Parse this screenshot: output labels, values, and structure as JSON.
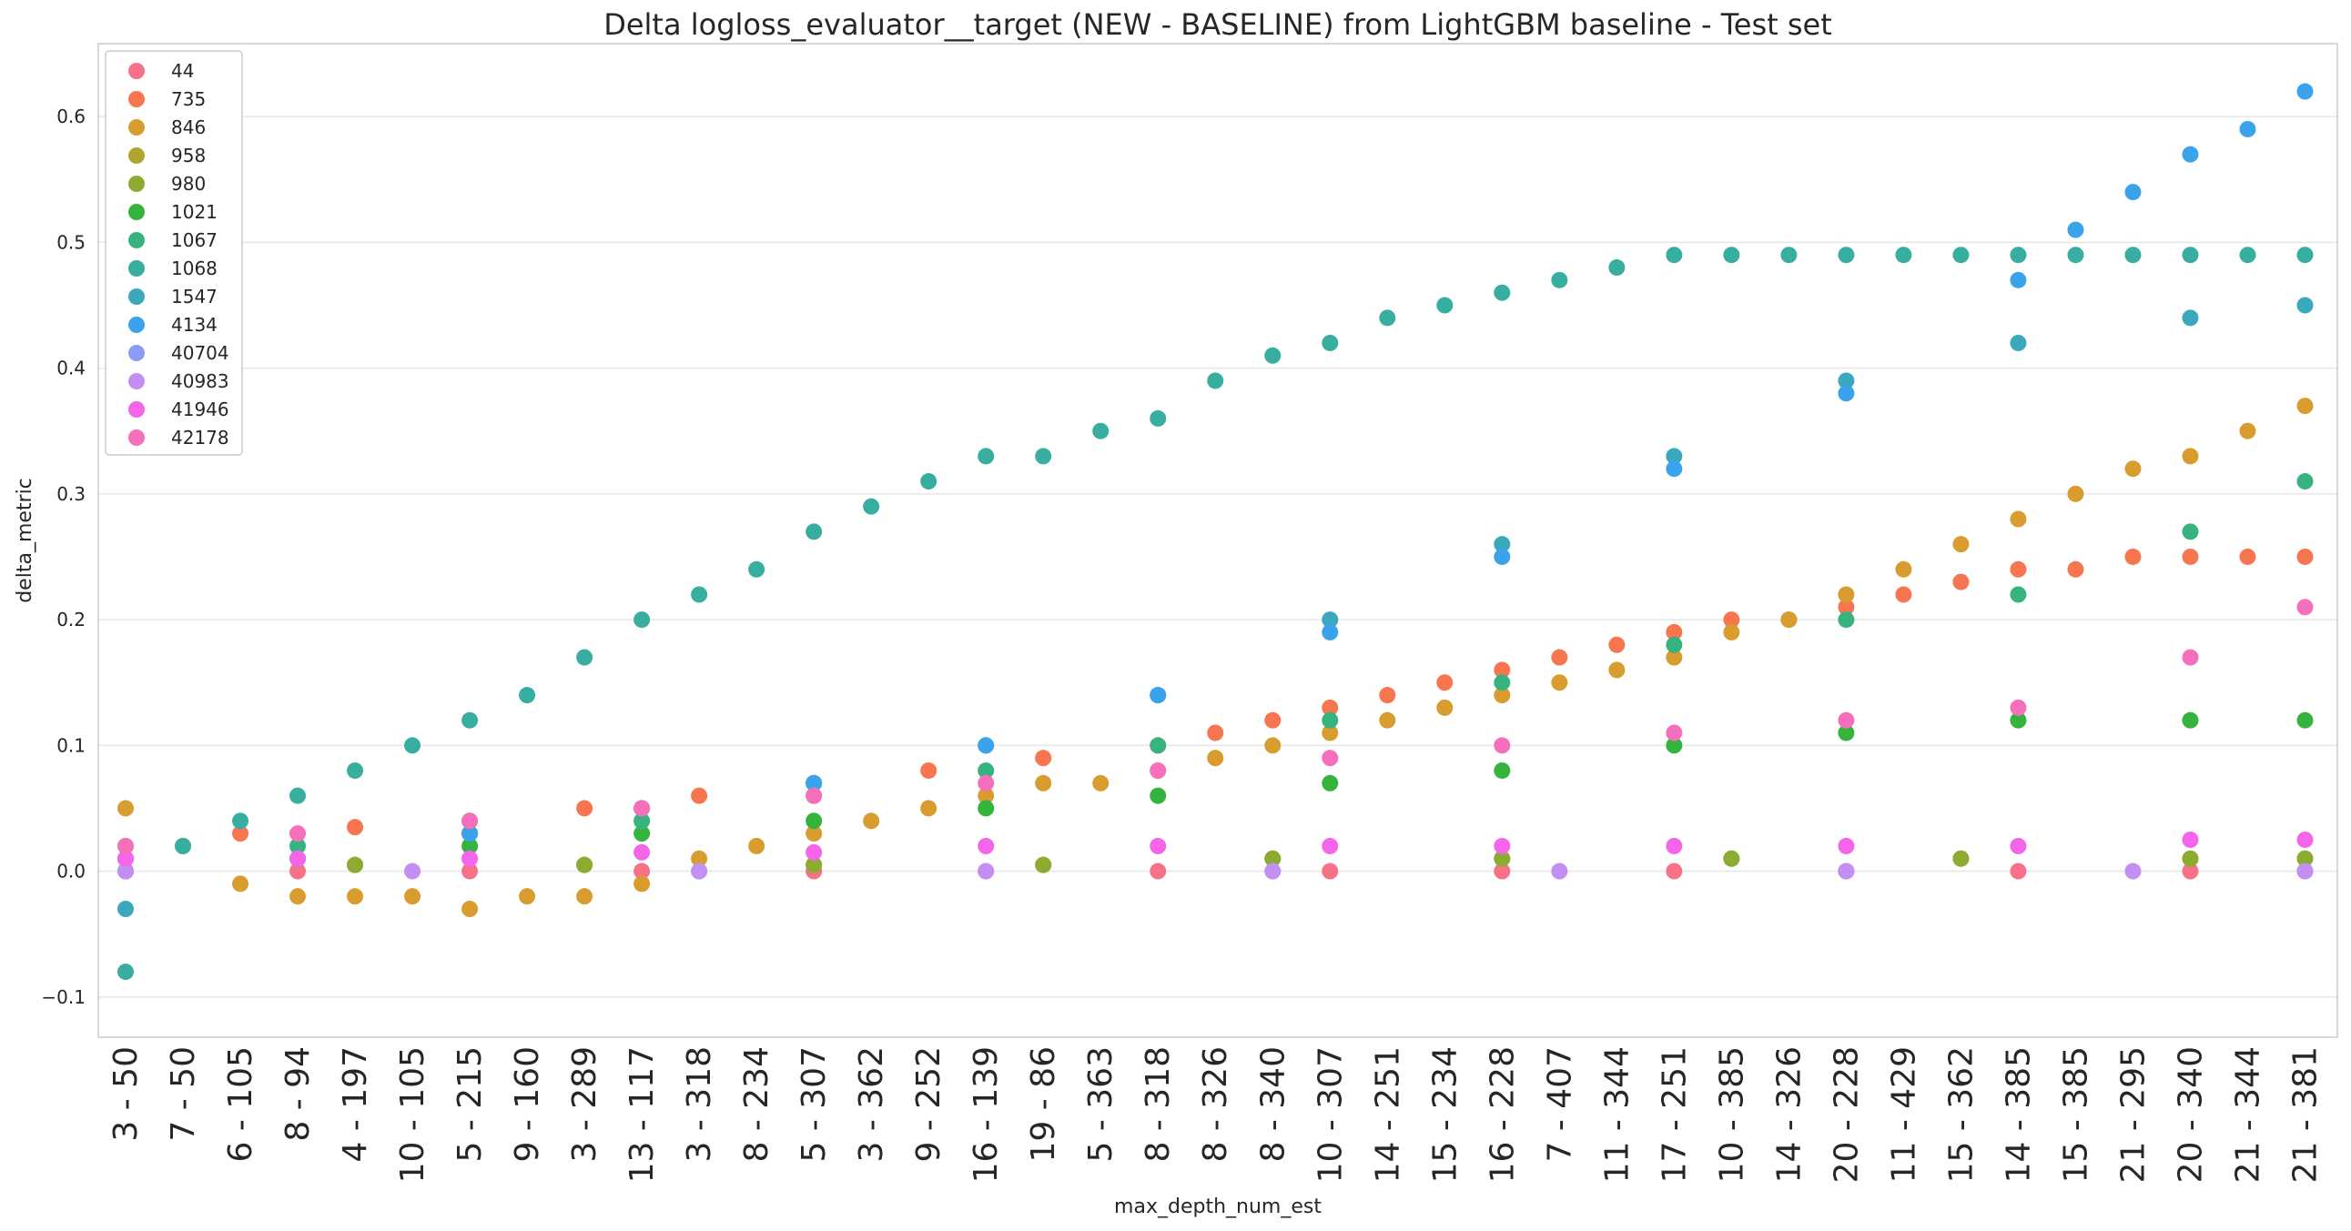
{
  "chart_data": {
    "type": "scatter",
    "title": "Delta logloss_evaluator__target (NEW - BASELINE) from LightGBM baseline - Test set",
    "xlabel": "max_depth_num_est",
    "ylabel": "delta_metric",
    "ylim": [
      -0.132,
      0.658
    ],
    "yticks": [
      "−0.1",
      "0.0",
      "0.1",
      "0.2",
      "0.3",
      "0.4",
      "0.5",
      "0.6"
    ],
    "ytick_values": [
      -0.1,
      0.0,
      0.1,
      0.2,
      0.3,
      0.4,
      0.5,
      0.6
    ],
    "x_tick_labels": [
      "3 - 50",
      "7 - 50",
      "6 - 105",
      "8 - 94",
      "4 - 197",
      "10 - 105",
      "5 - 215",
      "9 - 160",
      "3 - 289",
      "13 - 117",
      "3 - 318",
      "8 - 234",
      "5 - 307",
      "3 - 362",
      "9 - 252",
      "16 - 139",
      "19 - 86",
      "5 - 363",
      "8 - 318",
      "8 - 326",
      "8 - 340",
      "10 - 307",
      "14 - 251",
      "15 - 234",
      "16 - 228",
      "7 - 407",
      "11 - 344",
      "17 - 251",
      "10 - 385",
      "14 - 326",
      "20 - 228",
      "11 - 429",
      "15 - 362",
      "14 - 385",
      "15 - 385",
      "21 - 295",
      "20 - 340",
      "21 - 344",
      "21 - 381"
    ],
    "grid": "horizontal",
    "legend_position": "top-left",
    "series": [
      {
        "name": "44",
        "color": "#f77189",
        "x": [
          0,
          3,
          6,
          9,
          12,
          15,
          18,
          21,
          24,
          27,
          30,
          33,
          36,
          38
        ],
        "y": [
          0,
          0,
          0,
          0,
          0,
          0,
          0,
          0,
          0,
          0,
          0,
          0,
          0,
          0
        ]
      },
      {
        "name": "735",
        "color": "#f7754f",
        "x": [
          0,
          2,
          4,
          6,
          8,
          10,
          12,
          14,
          16,
          18,
          19,
          20,
          21,
          22,
          23,
          24,
          25,
          26,
          27,
          28,
          29,
          30,
          31,
          32,
          33,
          34,
          35,
          36,
          37,
          38
        ],
        "y": [
          0.02,
          0.03,
          0.035,
          0.04,
          0.05,
          0.06,
          0.07,
          0.08,
          0.09,
          0.1,
          0.11,
          0.12,
          0.13,
          0.14,
          0.15,
          0.16,
          0.17,
          0.18,
          0.19,
          0.2,
          0.2,
          0.21,
          0.22,
          0.23,
          0.24,
          0.24,
          0.25,
          0.25,
          0.25,
          0.25
        ]
      },
      {
        "name": "846",
        "color": "#d89c2f",
        "x": [
          0,
          1,
          2,
          3,
          4,
          5,
          6,
          7,
          8,
          9,
          10,
          11,
          12,
          13,
          14,
          15,
          16,
          17,
          18,
          19,
          20,
          21,
          22,
          23,
          24,
          25,
          26,
          27,
          28,
          29,
          30,
          31,
          32,
          33,
          34,
          35,
          36,
          37,
          38
        ],
        "y": [
          0.05,
          0.02,
          -0.01,
          -0.02,
          -0.02,
          -0.02,
          -0.03,
          -0.02,
          -0.02,
          -0.01,
          0.01,
          0.02,
          0.03,
          0.04,
          0.05,
          0.06,
          0.07,
          0.07,
          0.08,
          0.09,
          0.1,
          0.11,
          0.12,
          0.13,
          0.14,
          0.15,
          0.16,
          0.17,
          0.19,
          0.2,
          0.22,
          0.24,
          0.26,
          0.28,
          0.3,
          0.32,
          0.33,
          0.35,
          0.37
        ]
      },
      {
        "name": "958",
        "color": "#b0a52f",
        "x": [
          0,
          4,
          8,
          12,
          16,
          20,
          24,
          28,
          32,
          36,
          38
        ],
        "y": [
          0,
          0.005,
          0.005,
          0.005,
          0.005,
          0.01,
          0.01,
          0.01,
          0.01,
          0.01,
          0.01
        ]
      },
      {
        "name": "980",
        "color": "#8cac31",
        "x": [
          0,
          4,
          8,
          12,
          16,
          20,
          24,
          28,
          32,
          36,
          38
        ],
        "y": [
          0,
          0.005,
          0.005,
          0.005,
          0.005,
          0.01,
          0.01,
          0.01,
          0.01,
          0.01,
          0.01
        ]
      },
      {
        "name": "1021",
        "color": "#34b33d",
        "x": [
          0,
          3,
          6,
          9,
          12,
          15,
          18,
          21,
          24,
          27,
          30,
          33,
          36,
          38
        ],
        "y": [
          0.01,
          0.01,
          0.02,
          0.03,
          0.04,
          0.05,
          0.06,
          0.07,
          0.08,
          0.1,
          0.11,
          0.12,
          0.12,
          0.12
        ]
      },
      {
        "name": "1067",
        "color": "#37b380",
        "x": [
          0,
          3,
          6,
          9,
          12,
          15,
          18,
          21,
          24,
          27,
          30,
          33,
          36,
          38
        ],
        "y": [
          0.01,
          0.02,
          0.03,
          0.04,
          0.06,
          0.08,
          0.1,
          0.12,
          0.15,
          0.18,
          0.2,
          0.22,
          0.27,
          0.31
        ]
      },
      {
        "name": "1068",
        "color": "#38aea1",
        "x": [
          0,
          1,
          2,
          3,
          4,
          5,
          6,
          7,
          8,
          9,
          10,
          11,
          12,
          13,
          14,
          15,
          16,
          17,
          18,
          19,
          20,
          21,
          22,
          23,
          24,
          25,
          26,
          27,
          28,
          29,
          30,
          31,
          32,
          33,
          34,
          35,
          36,
          37,
          38
        ],
        "y": [
          -0.08,
          0.02,
          0.04,
          0.06,
          0.08,
          0.1,
          0.12,
          0.14,
          0.17,
          0.2,
          0.22,
          0.24,
          0.27,
          0.29,
          0.31,
          0.33,
          0.33,
          0.35,
          0.36,
          0.39,
          0.41,
          0.42,
          0.44,
          0.45,
          0.46,
          0.47,
          0.48,
          0.49,
          0.49,
          0.49,
          0.49,
          0.49,
          0.49,
          0.49,
          0.49,
          0.49,
          0.49,
          0.49,
          0.49
        ]
      },
      {
        "name": "1547",
        "color": "#3aa9bd",
        "x": [
          0,
          3,
          6,
          9,
          12,
          15,
          18,
          21,
          24,
          27,
          30,
          33,
          36,
          38
        ],
        "y": [
          -0.03,
          0.01,
          0.03,
          0.05,
          0.07,
          0.1,
          0.14,
          0.2,
          0.26,
          0.33,
          0.39,
          0.42,
          0.44,
          0.45
        ]
      },
      {
        "name": "4134",
        "color": "#3ba3ec",
        "x": [
          0,
          3,
          6,
          9,
          12,
          15,
          18,
          21,
          24,
          27,
          30,
          33,
          34,
          35,
          36,
          37,
          38
        ],
        "y": [
          0,
          0.01,
          0.03,
          0.05,
          0.07,
          0.1,
          0.14,
          0.19,
          0.25,
          0.32,
          0.38,
          0.47,
          0.51,
          0.54,
          0.57,
          0.59,
          0.62
        ]
      },
      {
        "name": "40704",
        "color": "#8c9cf4",
        "x": [
          0,
          10,
          20,
          30,
          38
        ],
        "y": [
          0,
          0,
          0,
          0,
          0
        ]
      },
      {
        "name": "40983",
        "color": "#c38ff3",
        "x": [
          0,
          5,
          10,
          15,
          20,
          25,
          30,
          35,
          38
        ],
        "y": [
          0,
          0,
          0,
          0,
          0,
          0,
          0,
          0,
          0
        ]
      },
      {
        "name": "41946",
        "color": "#f565ea",
        "x": [
          0,
          3,
          6,
          9,
          12,
          15,
          18,
          21,
          24,
          27,
          30,
          33,
          36,
          38
        ],
        "y": [
          0.01,
          0.01,
          0.01,
          0.015,
          0.015,
          0.02,
          0.02,
          0.02,
          0.02,
          0.02,
          0.02,
          0.02,
          0.025,
          0.025
        ]
      },
      {
        "name": "42178",
        "color": "#f66fba",
        "x": [
          0,
          3,
          6,
          9,
          12,
          15,
          18,
          21,
          24,
          27,
          30,
          33,
          36,
          38
        ],
        "y": [
          0.02,
          0.03,
          0.04,
          0.05,
          0.06,
          0.07,
          0.08,
          0.09,
          0.1,
          0.11,
          0.12,
          0.13,
          0.17,
          0.21
        ]
      }
    ]
  }
}
